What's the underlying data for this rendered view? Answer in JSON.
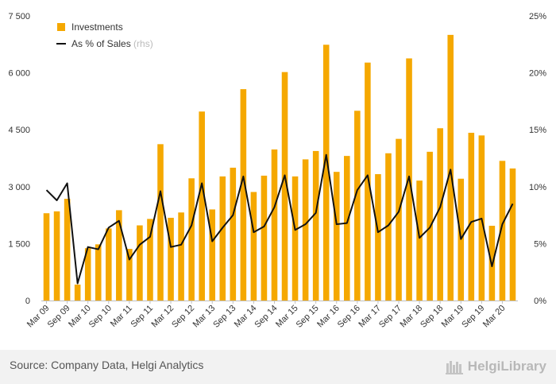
{
  "chart_data": {
    "type": "bar+line",
    "categories": [
      "Mar 09",
      "Jun 09",
      "Sep 09",
      "Dec 09",
      "Mar 10",
      "Jun 10",
      "Sep 10",
      "Dec 10",
      "Mar 11",
      "Jun 11",
      "Sep 11",
      "Dec 11",
      "Mar 12",
      "Jun 12",
      "Sep 12",
      "Dec 12",
      "Mar 13",
      "Jun 13",
      "Sep 13",
      "Dec 13",
      "Mar 14",
      "Jun 14",
      "Sep 14",
      "Dec 14",
      "Mar 15",
      "Jun 15",
      "Sep 15",
      "Dec 15",
      "Mar 16",
      "Jun 16",
      "Sep 16",
      "Dec 16",
      "Mar 17",
      "Jun 17",
      "Sep 17",
      "Dec 17",
      "Mar 18",
      "Jun 18",
      "Sep 18",
      "Dec 18",
      "Mar 19",
      "Jun 19",
      "Sep 19",
      "Dec 19",
      "Mar 20",
      "Jun 20"
    ],
    "x_tick_labels": [
      "Mar 09",
      "Sep 09",
      "Mar 10",
      "Sep 10",
      "Mar 11",
      "Sep 11",
      "Mar 12",
      "Sep 12",
      "Mar 13",
      "Sep 13",
      "Mar 14",
      "Sep 14",
      "Mar 15",
      "Sep 15",
      "Mar 16",
      "Sep 16",
      "Mar 17",
      "Sep 17",
      "Mar 18",
      "Sep 18",
      "Mar 19",
      "Sep 19",
      "Mar 20"
    ],
    "series": [
      {
        "name": "Investments",
        "type": "bar",
        "axis": "left",
        "color": "#F5A800",
        "values": [
          2300,
          2350,
          2680,
          420,
          1380,
          1480,
          1900,
          2380,
          1360,
          1980,
          2150,
          4120,
          2180,
          2320,
          3220,
          4980,
          2400,
          3270,
          3500,
          5570,
          2860,
          3290,
          3980,
          6020,
          3270,
          3720,
          3940,
          6740,
          3390,
          3810,
          5000,
          6270,
          3330,
          3880,
          4260,
          6380,
          3160,
          3920,
          4540,
          7000,
          3210,
          4420,
          4350,
          1970,
          3680,
          3480
        ]
      },
      {
        "name": "As % of Sales",
        "note": "(rhs)",
        "type": "line",
        "axis": "right",
        "color": "#111111",
        "values": [
          9.7,
          8.8,
          10.3,
          1.5,
          4.7,
          4.5,
          6.4,
          7.0,
          3.6,
          4.9,
          5.6,
          9.6,
          4.7,
          4.9,
          6.6,
          10.3,
          5.2,
          6.4,
          7.5,
          10.9,
          6.0,
          6.5,
          8.2,
          11.0,
          6.2,
          6.7,
          7.7,
          12.8,
          6.7,
          6.8,
          9.7,
          11.0,
          6.0,
          6.6,
          7.8,
          10.9,
          5.5,
          6.4,
          8.2,
          11.5,
          5.4,
          6.9,
          7.2,
          3.0,
          6.7,
          8.5
        ]
      }
    ],
    "y_left": {
      "min": 0,
      "max": 7500,
      "ticks": [
        "0",
        "1 500",
        "3 000",
        "4 500",
        "6 000",
        "7 500"
      ]
    },
    "y_right": {
      "min": 0,
      "max": 25,
      "ticks": [
        "0%",
        "5%",
        "10%",
        "15%",
        "20%",
        "25%"
      ]
    },
    "legend_position": "top-left",
    "grid": false
  },
  "footer": {
    "source": "Source: Company Data, Helgi Analytics",
    "brand": "HelgiLibrary"
  }
}
